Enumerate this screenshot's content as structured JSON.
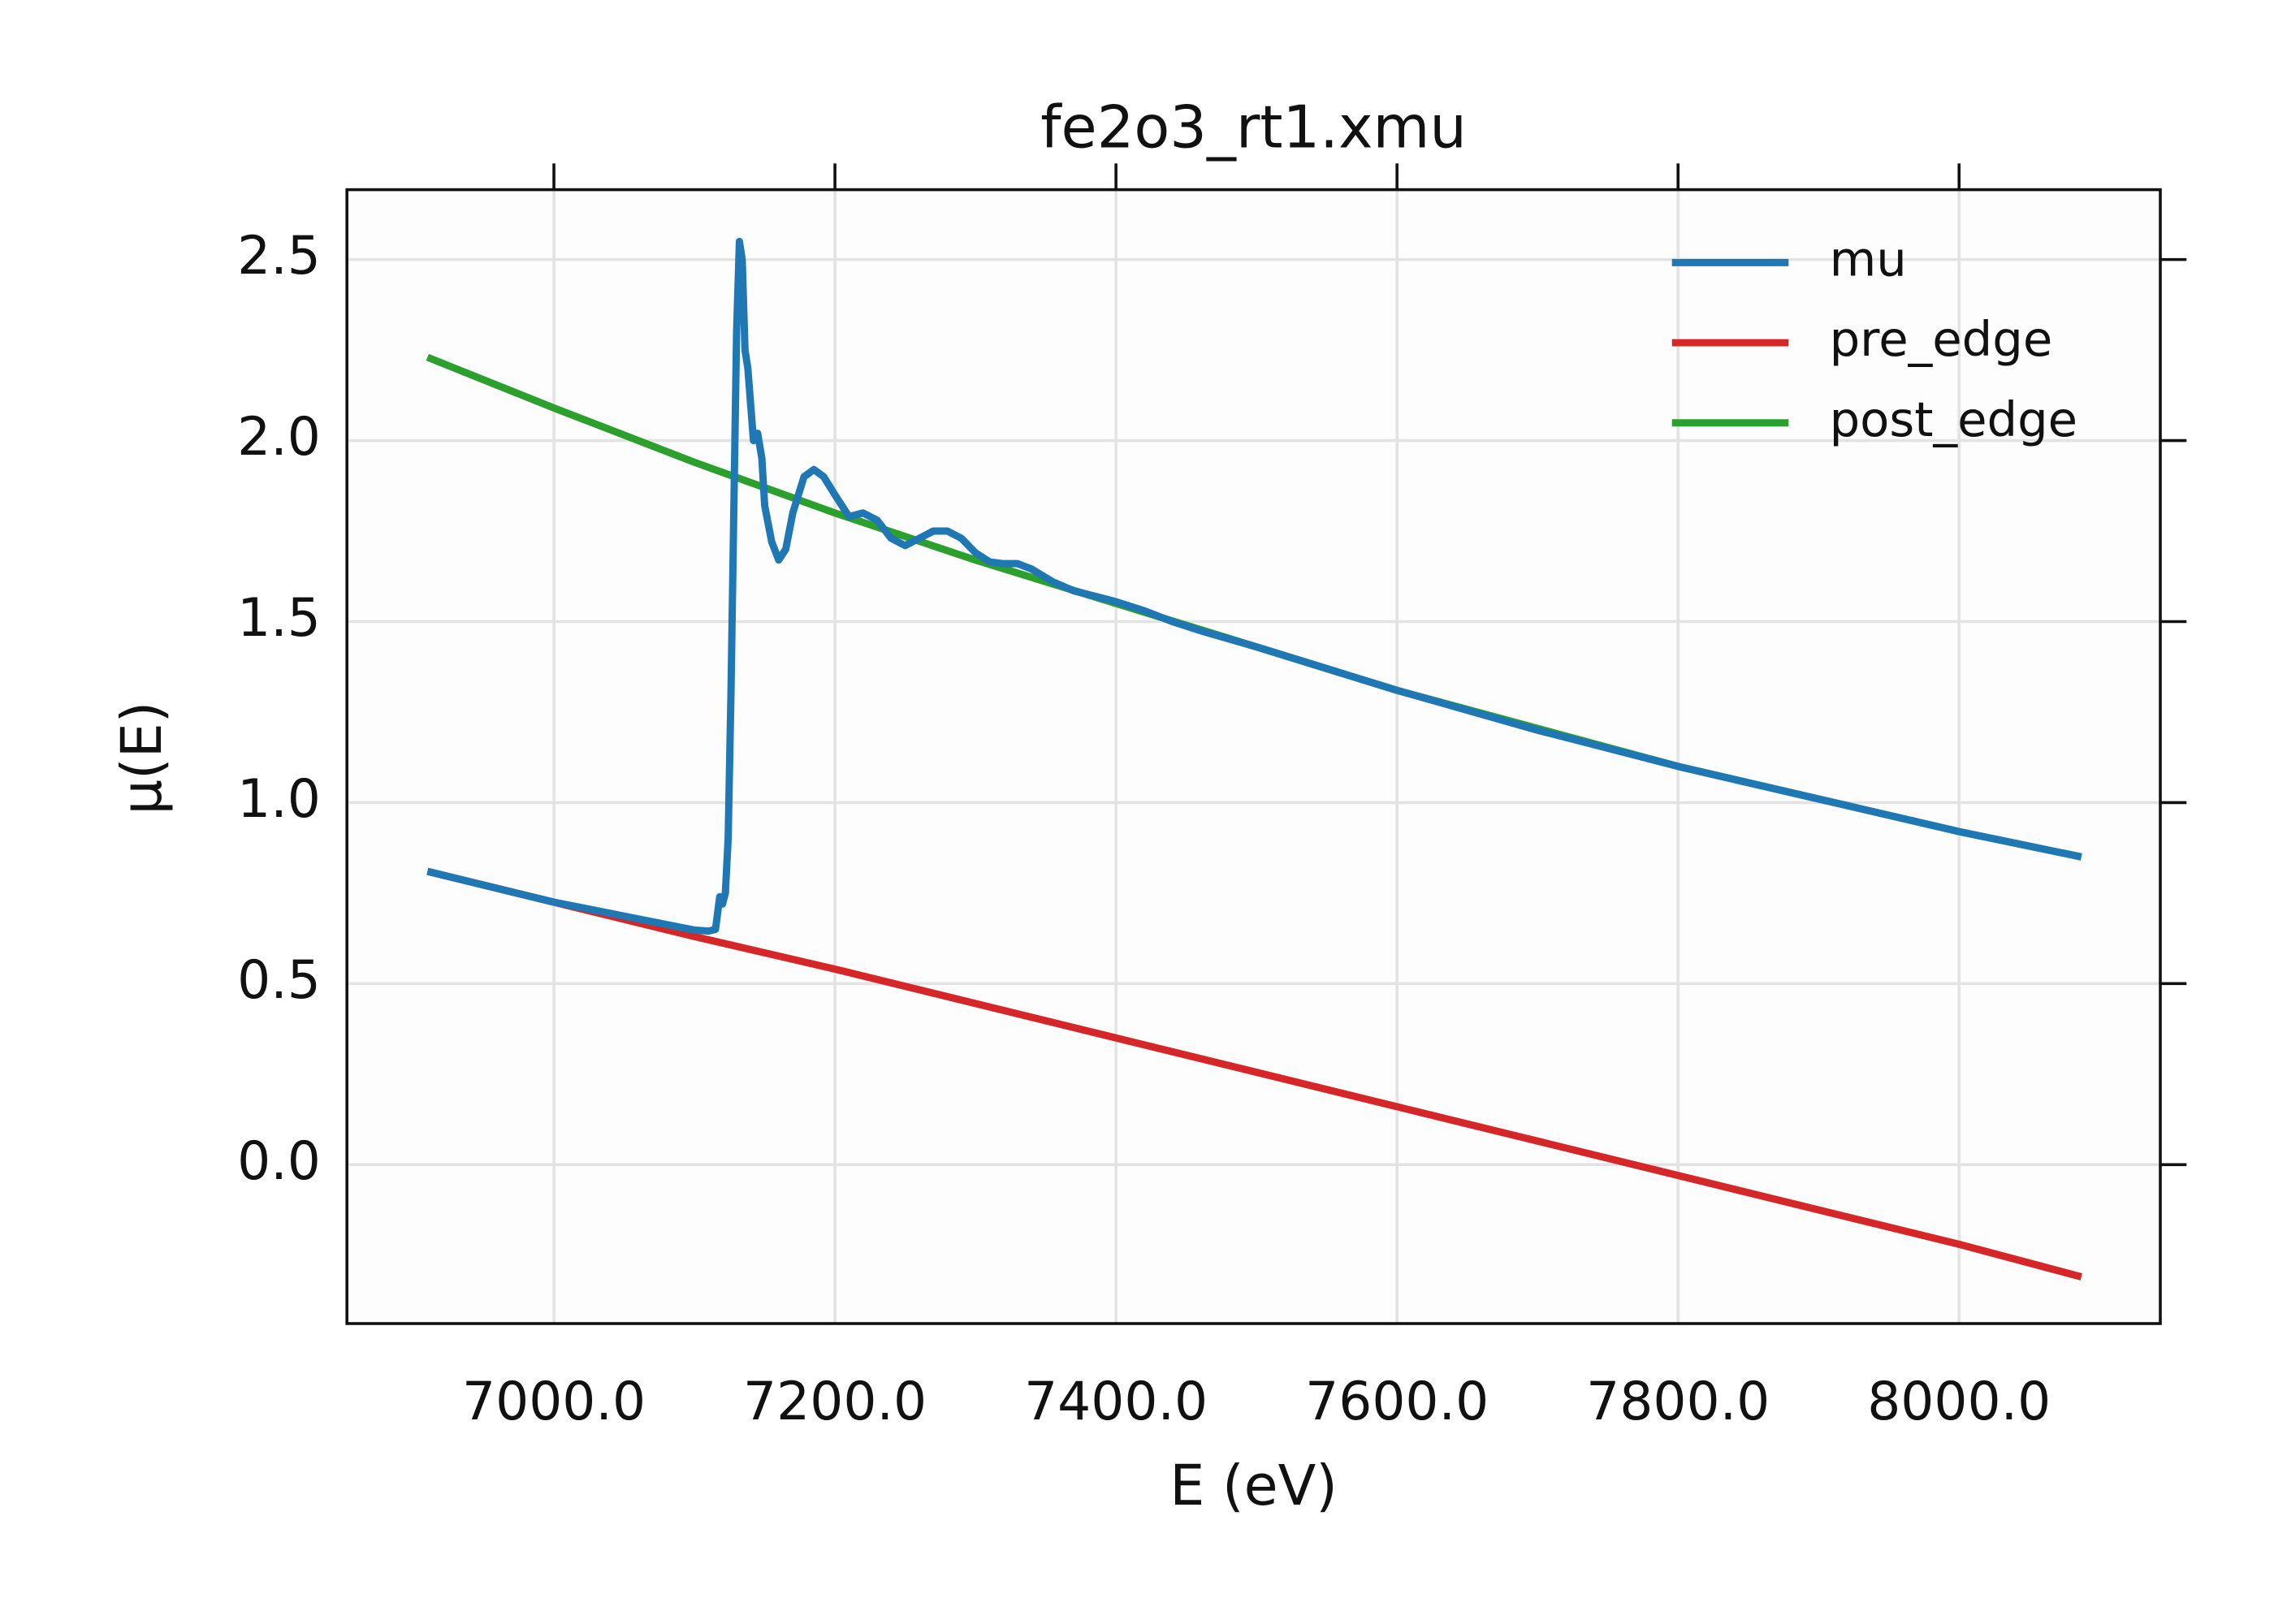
{
  "chart_data": {
    "type": "line",
    "title": "fe2o3_rt1.xmu",
    "x_label": "E (eV)",
    "y_label": "μ(E)",
    "xlim": [
      6852.7,
      8143.2
    ],
    "ylim": [
      -0.439,
      2.693
    ],
    "xticks": [
      {
        "value": 7000,
        "label": "7000.0"
      },
      {
        "value": 7200,
        "label": "7200.0"
      },
      {
        "value": 7400,
        "label": "7400.0"
      },
      {
        "value": 7600,
        "label": "7600.0"
      },
      {
        "value": 7800,
        "label": "7800.0"
      },
      {
        "value": 8000,
        "label": "8000.0"
      }
    ],
    "yticks": [
      {
        "value": 0,
        "label": "0.0"
      },
      0.5,
      {
        "value": 1,
        "label": "1.0"
      },
      1.5,
      {
        "value": 2,
        "label": "2.0"
      },
      2.5
    ],
    "grid": true,
    "legend": "upper right",
    "series": [
      {
        "name": "mu",
        "color": "#1f77b4",
        "x": [
          6910,
          7000,
          7100,
          7110,
          7115,
          7118,
          7120,
          7122,
          7124,
          7126,
          7128,
          7130,
          7132,
          7134,
          7136,
          7138,
          7140,
          7142,
          7145,
          7148,
          7150,
          7155,
          7160,
          7165,
          7170,
          7178,
          7185,
          7192,
          7200,
          7210,
          7220,
          7230,
          7240,
          7250,
          7260,
          7270,
          7280,
          7290,
          7300,
          7310,
          7320,
          7330,
          7340,
          7355,
          7370,
          7390,
          7400,
          7420,
          7440,
          7460,
          7500,
          7550,
          7600,
          7700,
          7800,
          7900,
          8000,
          8087
        ],
        "values": [
          0.81,
          0.725,
          0.648,
          0.645,
          0.65,
          0.74,
          0.72,
          0.75,
          0.9,
          1.3,
          1.8,
          2.3,
          2.55,
          2.5,
          2.25,
          2.2,
          2.1,
          2.0,
          2.02,
          1.95,
          1.82,
          1.72,
          1.67,
          1.7,
          1.8,
          1.9,
          1.92,
          1.9,
          1.85,
          1.79,
          1.8,
          1.78,
          1.73,
          1.71,
          1.73,
          1.75,
          1.75,
          1.73,
          1.69,
          1.665,
          1.66,
          1.66,
          1.645,
          1.61,
          1.585,
          1.565,
          1.555,
          1.53,
          1.5,
          1.475,
          1.43,
          1.37,
          1.31,
          1.2,
          1.1,
          1.01,
          0.92,
          0.85
        ]
      },
      {
        "name": "pre_edge",
        "color": "#d62728",
        "x": [
          6910,
          7100,
          7200,
          7400,
          7600,
          7800,
          8000,
          8087
        ],
        "values": [
          0.81,
          0.63,
          0.54,
          0.35,
          0.16,
          -0.03,
          -0.22,
          -0.31
        ]
      },
      {
        "name": "post_edge",
        "color": "#2ca02c",
        "x": [
          6910,
          7000,
          7100,
          7200,
          7300,
          7400,
          7500,
          7600,
          7800,
          8000,
          8087
        ],
        "values": [
          2.23,
          2.09,
          1.94,
          1.8,
          1.67,
          1.55,
          1.43,
          1.31,
          1.1,
          0.92,
          0.85
        ]
      }
    ]
  }
}
